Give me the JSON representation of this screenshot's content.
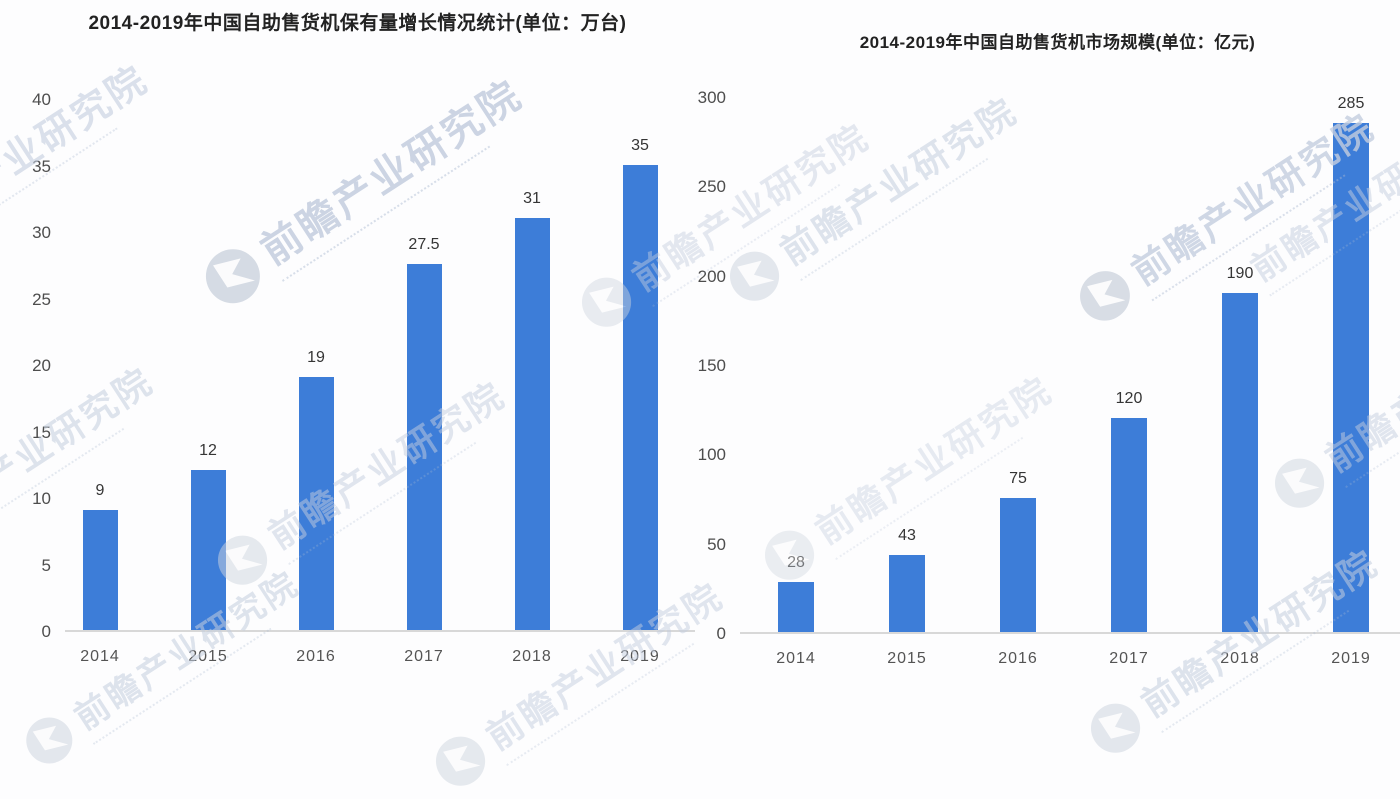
{
  "watermark": {
    "text": "前瞻产业研究院"
  },
  "chart_data": [
    {
      "type": "bar",
      "title": "2014-2019年中国自助售货机保有量增长情况统计(单位：万台)",
      "unit": "万台",
      "categories": [
        "2014",
        "2015",
        "2016",
        "2017",
        "2018",
        "2019"
      ],
      "values": [
        9,
        12,
        19,
        27.5,
        31,
        35
      ],
      "data_labels": [
        "9",
        "12",
        "19",
        "27.5",
        "31",
        "35"
      ],
      "yticks": [
        0,
        5,
        10,
        15,
        20,
        25,
        30,
        35,
        40
      ],
      "ylim": [
        0,
        40
      ],
      "xlabel": "",
      "ylabel": "",
      "grid": false,
      "legend": false,
      "bar_color": "#3d7dd8"
    },
    {
      "type": "bar",
      "title": "2014-2019年中国自助售货机市场规模(单位：亿元)",
      "unit": "亿元",
      "categories": [
        "2014",
        "2015",
        "2016",
        "2017",
        "2018",
        "2019"
      ],
      "values": [
        28,
        43,
        75,
        120,
        190,
        285
      ],
      "data_labels": [
        "28",
        "43",
        "75",
        "120",
        "190",
        "285"
      ],
      "yticks": [
        0,
        50,
        100,
        150,
        200,
        250,
        300
      ],
      "ylim": [
        0,
        300
      ],
      "xlabel": "",
      "ylabel": "",
      "grid": false,
      "legend": false,
      "bar_color": "#3d7dd8"
    }
  ]
}
